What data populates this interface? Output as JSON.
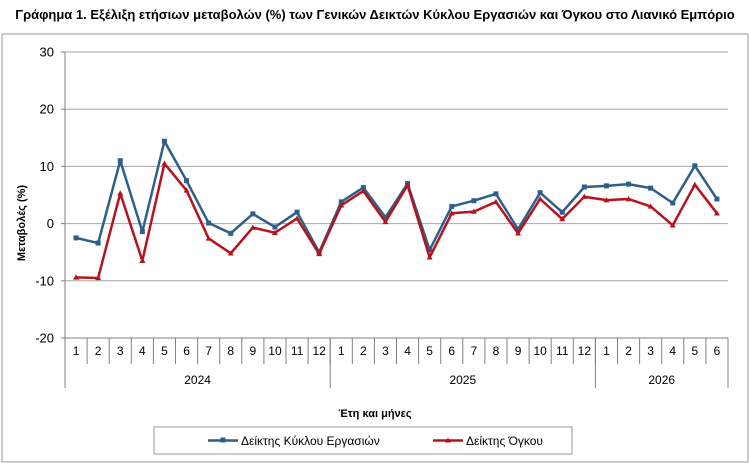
{
  "chart_data": {
    "type": "line",
    "title": "Γράφημα 1. Εξέλιξη ετήσιων μεταβολών (%) των Γενικών Δεικτών Κύκλου Εργασιών και Όγκου στο Λιανικό Εμπόριο",
    "xlabel": "Έτη και μήνες",
    "ylabel": "Μεταβολές (%)",
    "ylim": [
      -20,
      30
    ],
    "yticks": [
      -20,
      -10,
      0,
      10,
      20,
      30
    ],
    "grid": true,
    "legend_position": "bottom",
    "categories": [
      "1",
      "2",
      "3",
      "4",
      "5",
      "6",
      "7",
      "8",
      "9",
      "10",
      "11",
      "12",
      "1",
      "2",
      "3",
      "4",
      "5",
      "6",
      "7",
      "8",
      "9",
      "10",
      "11",
      "12",
      "1",
      "2",
      "3",
      "4",
      "5",
      "6"
    ],
    "year_groups": [
      {
        "label": "2024",
        "count": 12
      },
      {
        "label": "2025",
        "count": 12
      },
      {
        "label": "2026",
        "count": 6
      }
    ],
    "series": [
      {
        "name": "Δείκτης Κύκλου Εργασιών",
        "color": "#2E5F8A",
        "marker": "square",
        "values": [
          -2.5,
          -3.4,
          11.0,
          -1.4,
          14.4,
          7.5,
          0.1,
          -1.7,
          1.7,
          -0.6,
          2.0,
          -5.0,
          3.8,
          6.3,
          1.1,
          7.0,
          -4.6,
          3.0,
          4.0,
          5.2,
          -1.0,
          5.4,
          2.0,
          6.4,
          6.6,
          6.9,
          6.2,
          3.6,
          10.1,
          4.3
        ]
      },
      {
        "name": "Δείκτης Όγκου",
        "color": "#B7131D",
        "marker": "triangle",
        "values": [
          -9.4,
          -9.5,
          5.3,
          -6.5,
          10.5,
          5.8,
          -2.6,
          -5.2,
          -0.7,
          -1.6,
          0.9,
          -5.3,
          3.2,
          5.7,
          0.3,
          6.7,
          -5.9,
          1.8,
          2.1,
          3.8,
          -1.7,
          4.3,
          0.8,
          4.7,
          4.1,
          4.3,
          3.0,
          -0.3,
          6.8,
          1.8
        ]
      }
    ]
  }
}
